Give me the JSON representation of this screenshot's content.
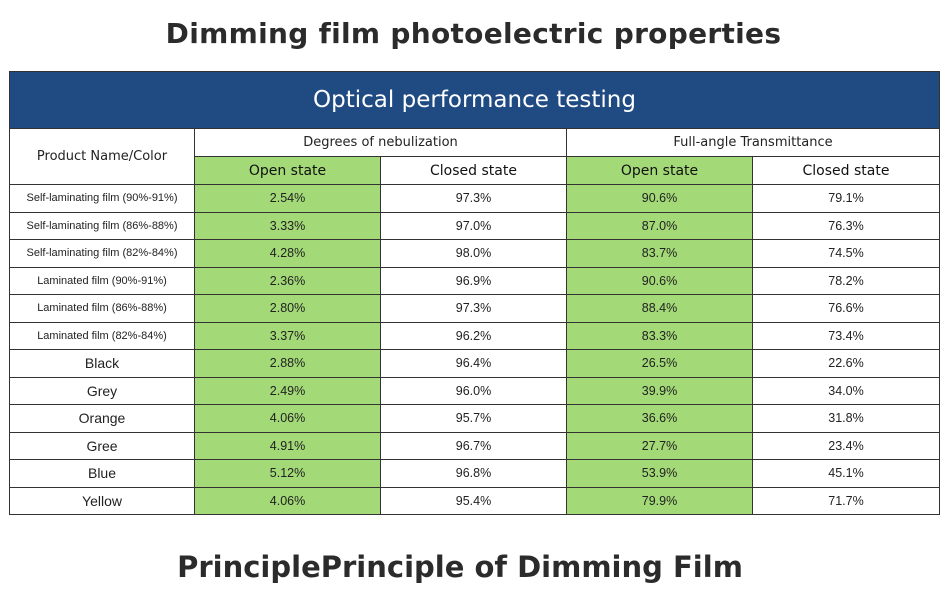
{
  "title": "Dimming film photoelectric properties",
  "bottom_title": "PrinciplePrinciple of Dimming Film",
  "colors": {
    "banner_blue": "#1f4a82",
    "open_state_green": "#a3d977"
  },
  "table": {
    "banner": "Optical performance testing",
    "product_header": "Product Name/Color",
    "groups": [
      "Degrees of nebulization",
      "Full-angle Transmittance"
    ],
    "state_labels": [
      "Open state",
      "Closed state",
      "Open state",
      "Closed state"
    ],
    "rows": [
      {
        "name": "Self-laminating film (90%-91%)",
        "values": [
          "2.54%",
          "97.3%",
          "90.6%",
          "79.1%"
        ]
      },
      {
        "name": "Self-laminating film (86%-88%)",
        "values": [
          "3.33%",
          "97.0%",
          "87.0%",
          "76.3%"
        ]
      },
      {
        "name": "Self-laminating film (82%-84%)",
        "values": [
          "4.28%",
          "98.0%",
          "83.7%",
          "74.5%"
        ]
      },
      {
        "name": "Laminated film (90%-91%)",
        "values": [
          "2.36%",
          "96.9%",
          "90.6%",
          "78.2%"
        ]
      },
      {
        "name": "Laminated film (86%-88%)",
        "values": [
          "2.80%",
          "97.3%",
          "88.4%",
          "76.6%"
        ]
      },
      {
        "name": "Laminated film (82%-84%)",
        "values": [
          "3.37%",
          "96.2%",
          "83.3%",
          "73.4%"
        ]
      },
      {
        "name": "Black",
        "values": [
          "2.88%",
          "96.4%",
          "26.5%",
          "22.6%"
        ]
      },
      {
        "name": "Grey",
        "values": [
          "2.49%",
          "96.0%",
          "39.9%",
          "34.0%"
        ]
      },
      {
        "name": "Orange",
        "values": [
          "4.06%",
          "95.7%",
          "36.6%",
          "31.8%"
        ]
      },
      {
        "name": "Gree",
        "values": [
          "4.91%",
          "96.7%",
          "27.7%",
          "23.4%"
        ]
      },
      {
        "name": "Blue",
        "values": [
          "5.12%",
          "96.8%",
          "53.9%",
          "45.1%"
        ]
      },
      {
        "name": "Yellow",
        "values": [
          "4.06%",
          "95.4%",
          "79.9%",
          "71.7%"
        ]
      }
    ]
  }
}
